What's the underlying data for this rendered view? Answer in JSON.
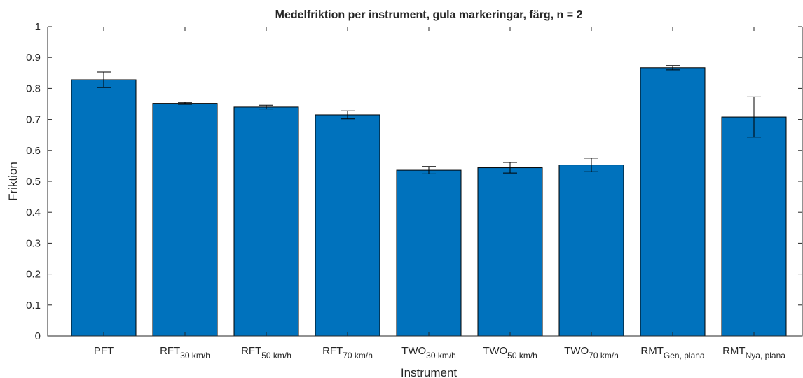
{
  "chart_data": {
    "type": "bar",
    "title": "Medelfriktion per instrument, gula markeringar, färg, n = 2",
    "x_label": "Instrument",
    "y_label": "Friktion",
    "categories": [
      {
        "label": "PFT"
      },
      {
        "label": "RFT",
        "subscript": "30 km/h"
      },
      {
        "label": "RFT",
        "subscript": "50 km/h"
      },
      {
        "label": "RFT",
        "subscript": "70 km/h"
      },
      {
        "label": "TWO",
        "subscript": "30 km/h"
      },
      {
        "label": "TWO",
        "subscript": "50 km/h"
      },
      {
        "label": "TWO",
        "subscript": "70 km/h"
      },
      {
        "label": "RMT",
        "subscript": "Gen, plana"
      },
      {
        "label": "RMT",
        "subscript": "Nya, plana"
      }
    ],
    "values": [
      0.828,
      0.752,
      0.74,
      0.715,
      0.536,
      0.544,
      0.553,
      0.867,
      0.708
    ],
    "errors": [
      0.025,
      0.003,
      0.006,
      0.013,
      0.012,
      0.017,
      0.022,
      0.007,
      0.065
    ],
    "color": "#0072bd",
    "ylim": [
      0,
      1
    ],
    "yticks": [
      0,
      0.1,
      0.2,
      0.3,
      0.4,
      0.5,
      0.6,
      0.7,
      0.8,
      0.9,
      1
    ]
  }
}
